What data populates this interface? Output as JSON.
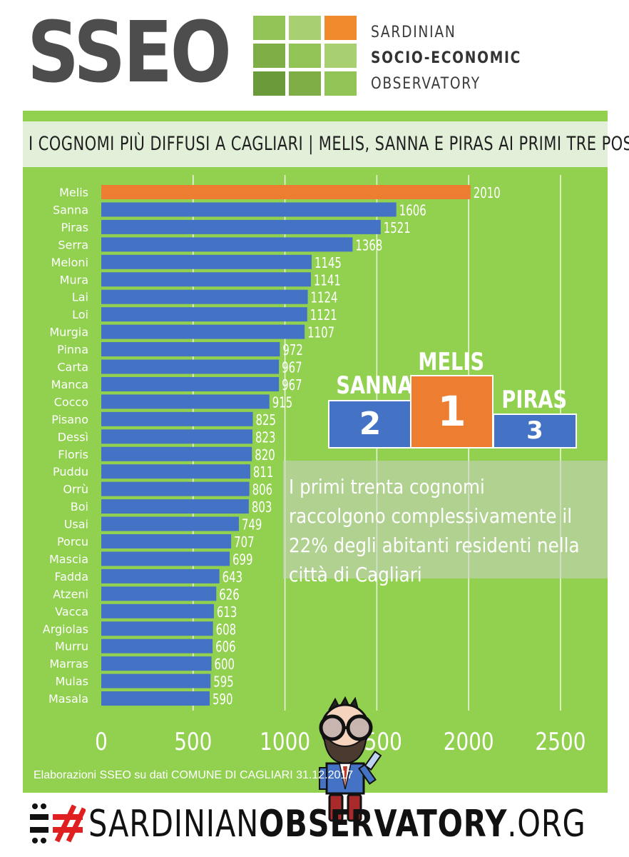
{
  "header": {
    "logo_text": "SSEO",
    "org_line1": "SARDINIAN",
    "org_line2": "SOCIO-ECONOMIC",
    "org_line3": "OBSERVATORY",
    "logo_grid_colors": [
      "#92c356",
      "#a8d070",
      "#f08a2c",
      "#7fae46",
      "#92c356",
      "#a8d070",
      "#6a9a3a",
      "#7fae46",
      "#92c356"
    ]
  },
  "colors": {
    "panel_bg": "#92d050",
    "title_band": "#e2f0d9",
    "bar_default": "#4472c4",
    "bar_highlight": "#ed7d31",
    "podium_blue": "#4472c4",
    "podium_orange": "#ed7d31"
  },
  "chart_data": {
    "type": "bar",
    "orientation": "horizontal",
    "title": "I COGNOMI PIÙ DIFFUSI A CAGLIARI | MELIS, SANNA E PIRAS AI PRIMI TRE POSTI",
    "categories": [
      "Melis",
      "Sanna",
      "Piras",
      "Serra",
      "Meloni",
      "Mura",
      "Lai",
      "Loi",
      "Murgia",
      "Pinna",
      "Carta",
      "Manca",
      "Cocco",
      "Pisano",
      "Dessì",
      "Floris",
      "Puddu",
      "Orrù",
      "Boi",
      "Usai",
      "Porcu",
      "Mascia",
      "Fadda",
      "Atzeni",
      "Vacca",
      "Argiolas",
      "Murru",
      "Marras",
      "Mulas",
      "Masala"
    ],
    "values": [
      2010,
      1606,
      1521,
      1368,
      1145,
      1141,
      1124,
      1121,
      1107,
      972,
      967,
      967,
      915,
      825,
      823,
      820,
      811,
      806,
      803,
      749,
      707,
      699,
      643,
      626,
      613,
      608,
      606,
      600,
      595,
      590
    ],
    "xlim": [
      0,
      2500
    ],
    "xticks": [
      "0",
      "500",
      "1000",
      "1500",
      "2000",
      "2500"
    ],
    "grid": true,
    "highlight_index": 0
  },
  "podium": {
    "first_name": "MELIS",
    "first_rank": "1",
    "second_name": "SANNA",
    "second_rank": "2",
    "third_name": "PIRAS",
    "third_rank": "3"
  },
  "note": "I primi trenta cognomi raccolgono complessivamente il 22% degli abitanti residenti nella città di Cagliari",
  "source": "Elaborazioni SSEO su dati COMUNE DI CAGLIARI 31.12.2017",
  "footer": {
    "text_part1": "SARDINIAN",
    "text_part2": "OBSERVATORY",
    "text_part3": ".ORG"
  }
}
